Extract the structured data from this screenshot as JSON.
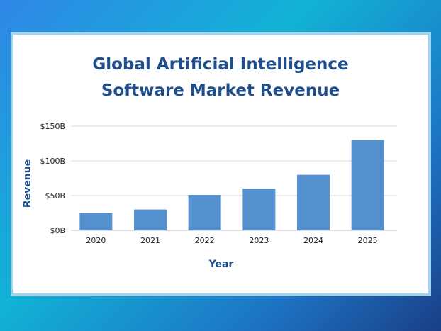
{
  "chart_data": {
    "type": "bar",
    "title_lines": [
      "Global Artificial Intelligence",
      "Software Market Revenue"
    ],
    "xlabel": "Year",
    "ylabel": "Revenue",
    "categories": [
      "2020",
      "2021",
      "2022",
      "2023",
      "2024",
      "2025"
    ],
    "values": [
      25,
      30,
      51,
      60,
      80,
      130
    ],
    "units": "$B",
    "ylim": [
      0,
      150
    ],
    "yticks": [
      0,
      50,
      100,
      150
    ],
    "ytick_labels": [
      "$0B",
      "$50B",
      "$100B",
      "$150B"
    ],
    "grid": true,
    "bar_color": "#5591cf",
    "grid_color": "#cfcfcf"
  }
}
